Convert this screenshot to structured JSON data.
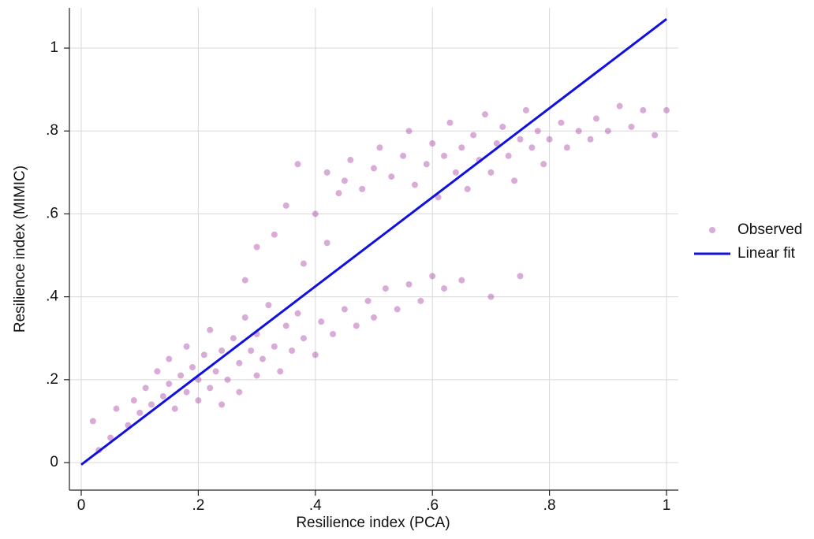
{
  "chart_data": {
    "type": "scatter",
    "xlabel": "Resilience index (PCA)",
    "ylabel": "Resilience index (MIMIC)",
    "xlim": [
      -0.0202,
      1.0202
    ],
    "ylim": [
      -0.0665,
      1.097
    ],
    "xticks": [
      0,
      {
        "value": 0.2,
        "label": ".2"
      },
      {
        "value": 0.4,
        "label": ".4"
      },
      {
        "value": 0.6,
        "label": ".6"
      },
      {
        "value": 0.8,
        "label": ".8"
      },
      1
    ],
    "yticks": [
      0,
      {
        "value": 0.2,
        "label": ".2"
      },
      {
        "value": 0.4,
        "label": ".4"
      },
      {
        "value": 0.6,
        "label": ".6"
      },
      {
        "value": 0.8,
        "label": ".8"
      },
      1
    ],
    "grid": true,
    "legend": "right",
    "series": [
      {
        "name": "Observed",
        "color": "#a0309e",
        "mode": "markers",
        "x": [
          0.02,
          0.03,
          0.05,
          0.06,
          0.08,
          0.09,
          0.1,
          0.11,
          0.12,
          0.13,
          0.14,
          0.15,
          0.15,
          0.16,
          0.17,
          0.18,
          0.18,
          0.19,
          0.2,
          0.2,
          0.21,
          0.22,
          0.22,
          0.23,
          0.24,
          0.24,
          0.25,
          0.26,
          0.27,
          0.27,
          0.28,
          0.29,
          0.3,
          0.3,
          0.31,
          0.32,
          0.33,
          0.34,
          0.35,
          0.36,
          0.37,
          0.38,
          0.4,
          0.41,
          0.43,
          0.45,
          0.47,
          0.49,
          0.5,
          0.52,
          0.54,
          0.56,
          0.58,
          0.6,
          0.62,
          0.65,
          0.7,
          0.75,
          0.28,
          0.3,
          0.33,
          0.35,
          0.37,
          0.38,
          0.4,
          0.42,
          0.44,
          0.42,
          0.45,
          0.46,
          0.48,
          0.5,
          0.51,
          0.53,
          0.55,
          0.56,
          0.57,
          0.59,
          0.6,
          0.61,
          0.62,
          0.63,
          0.64,
          0.65,
          0.66,
          0.67,
          0.68,
          0.69,
          0.7,
          0.71,
          0.72,
          0.73,
          0.74,
          0.75,
          0.76,
          0.77,
          0.78,
          0.79,
          0.8,
          0.82,
          0.83,
          0.85,
          0.87,
          0.88,
          0.9,
          0.92,
          0.94,
          0.96,
          0.98,
          1.0
        ],
        "values": [
          0.1,
          0.03,
          0.06,
          0.13,
          0.09,
          0.15,
          0.12,
          0.18,
          0.14,
          0.22,
          0.16,
          0.19,
          0.25,
          0.13,
          0.21,
          0.17,
          0.28,
          0.23,
          0.15,
          0.2,
          0.26,
          0.18,
          0.32,
          0.22,
          0.14,
          0.27,
          0.2,
          0.3,
          0.17,
          0.24,
          0.35,
          0.27,
          0.21,
          0.31,
          0.25,
          0.38,
          0.28,
          0.22,
          0.33,
          0.27,
          0.36,
          0.3,
          0.26,
          0.34,
          0.31,
          0.37,
          0.33,
          0.39,
          0.35,
          0.42,
          0.37,
          0.43,
          0.39,
          0.45,
          0.42,
          0.44,
          0.4,
          0.45,
          0.44,
          0.52,
          0.55,
          0.62,
          0.72,
          0.48,
          0.6,
          0.53,
          0.65,
          0.7,
          0.68,
          0.73,
          0.66,
          0.71,
          0.76,
          0.69,
          0.74,
          0.8,
          0.67,
          0.72,
          0.77,
          0.64,
          0.74,
          0.82,
          0.7,
          0.76,
          0.66,
          0.79,
          0.73,
          0.84,
          0.7,
          0.77,
          0.81,
          0.74,
          0.68,
          0.78,
          0.85,
          0.76,
          0.8,
          0.72,
          0.78,
          0.82,
          0.76,
          0.8,
          0.78,
          0.83,
          0.8,
          0.86,
          0.81,
          0.85,
          0.79,
          0.85
        ]
      },
      {
        "name": "Linear fit",
        "color": "#1010e0",
        "mode": "lines",
        "x": [
          0,
          1
        ],
        "values": [
          -0.005,
          1.07
        ]
      }
    ]
  }
}
